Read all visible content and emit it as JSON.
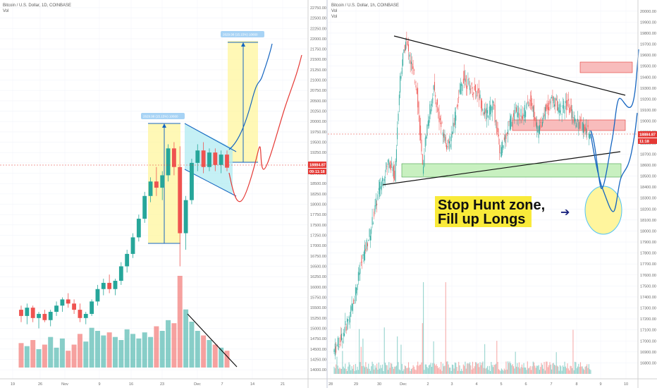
{
  "left_panel": {
    "header": "Bitcoin / U.S. Dollar, 1D, COINBASE",
    "vol_label": "Vol",
    "price_tag": "18884.87",
    "time_tag": "09:11:18",
    "projection_label_1": "2629.98 (15.15%) 10660",
    "projection_label_2": "2629.98 (15.15%) 10660"
  },
  "right_panel": {
    "header": "Bitcoin / U.S. Dollar, 1h, COINBASE",
    "vol_label": "Vol",
    "price_tag": "18884.87",
    "time_tag": "11:18",
    "callout_line1": "Stop Hunt zone,",
    "callout_line2": "Fill up Longs",
    "arrow_glyph": "➔"
  },
  "colors": {
    "up": "#26a69a",
    "down": "#ef5350",
    "yellow_box": "#fff59d",
    "cyan_box": "#b2ebf2",
    "red_zone": "#f8bcbc",
    "green_zone": "#c8f0c0",
    "projection_blue": "#1565c0",
    "projection_red": "#e53935"
  },
  "chart_data": [
    {
      "type": "candlestick",
      "title": "Bitcoin / U.S. Dollar, 1D, COINBASE",
      "x_ticks": [
        "19",
        "26",
        "Nov",
        "9",
        "16",
        "23",
        "Dec",
        "7",
        "14",
        "21"
      ],
      "y_ticks": [
        14000,
        14250,
        14500,
        14750,
        15000,
        15250,
        15500,
        15750,
        16000,
        16250,
        16500,
        16750,
        17000,
        17250,
        17500,
        17750,
        18000,
        18250,
        18500,
        18750,
        19000,
        19250,
        19500,
        19750,
        20000,
        20250,
        20500,
        20750,
        21000,
        21250,
        21500,
        21750,
        22000,
        22250,
        22500,
        22750
      ],
      "ylim": [
        13900,
        22800
      ],
      "candles": [
        [
          15450,
          15550,
          15150,
          15300
        ],
        [
          15300,
          15600,
          15100,
          15500
        ],
        [
          15500,
          15550,
          15150,
          15250
        ],
        [
          15250,
          15400,
          15000,
          15350
        ],
        [
          15350,
          15450,
          15150,
          15200
        ],
        [
          15200,
          15450,
          15050,
          15400
        ],
        [
          15400,
          15650,
          15300,
          15550
        ],
        [
          15550,
          15750,
          15400,
          15700
        ],
        [
          15700,
          15850,
          15500,
          15600
        ],
        [
          15600,
          15700,
          15350,
          15450
        ],
        [
          15450,
          15600,
          15150,
          15250
        ],
        [
          15250,
          15400,
          15100,
          15350
        ],
        [
          15350,
          15700,
          15300,
          15650
        ],
        [
          15650,
          16050,
          15550,
          15950
        ],
        [
          15950,
          16200,
          15800,
          16100
        ],
        [
          16100,
          16300,
          15850,
          15950
        ],
        [
          15950,
          16200,
          15800,
          16150
        ],
        [
          16150,
          16600,
          16050,
          16500
        ],
        [
          16500,
          16900,
          16350,
          16800
        ],
        [
          16800,
          17300,
          16700,
          17200
        ],
        [
          17200,
          17750,
          17100,
          17650
        ],
        [
          17650,
          18300,
          17550,
          18200
        ],
        [
          18200,
          18650,
          18050,
          18550
        ],
        [
          18550,
          18900,
          18200,
          18400
        ],
        [
          18400,
          18800,
          18100,
          18700
        ],
        [
          18700,
          19450,
          18550,
          19350
        ],
        [
          19350,
          19500,
          18700,
          18900
        ],
        [
          18900,
          19400,
          16500,
          17300
        ],
        [
          17300,
          18200,
          16900,
          18100
        ],
        [
          18100,
          19100,
          18000,
          19000
        ],
        [
          19000,
          19450,
          18800,
          19300
        ],
        [
          19300,
          19500,
          18750,
          18900
        ],
        [
          18900,
          19350,
          18800,
          19250
        ],
        [
          19250,
          19350,
          18800,
          18950
        ],
        [
          18950,
          19300,
          18750,
          19200
        ],
        [
          19200,
          19300,
          18800,
          18884
        ]
      ],
      "volume": [
        32,
        28,
        36,
        24,
        30,
        40,
        26,
        38,
        22,
        30,
        44,
        34,
        52,
        48,
        42,
        46,
        40,
        36,
        50,
        44,
        38,
        46,
        40,
        54,
        48,
        62,
        58,
        120,
        76,
        60,
        48,
        42,
        36,
        30,
        26,
        22
      ],
      "projection": {
        "measured_move": "2629.98 (15.15%)",
        "target_high": 21850,
        "target_low": 19000
      }
    },
    {
      "type": "candlestick",
      "title": "Bitcoin / U.S. Dollar, 1h, COINBASE",
      "x_ticks": [
        "28",
        "29",
        "30",
        "Dec",
        "2",
        "3",
        "4",
        "5",
        "6",
        "7",
        "8",
        "9",
        "10"
      ],
      "y_ticks": [
        16800,
        16900,
        17000,
        17100,
        17200,
        17300,
        17400,
        17500,
        17600,
        17700,
        17800,
        17900,
        18000,
        18100,
        18200,
        18300,
        18400,
        18500,
        18600,
        18700,
        18800,
        18900,
        19000,
        19100,
        19200,
        19300,
        19400,
        19500,
        19600,
        19700,
        19800,
        19900,
        20000
      ],
      "ylim": [
        16700,
        20050
      ],
      "zones": {
        "upper_resistance": [
          19450,
          19550
        ],
        "mid_resistance": [
          18950,
          19050
        ],
        "support": [
          18550,
          18680
        ],
        "stop_hunt_zone": [
          18000,
          18300
        ]
      },
      "annotation": "Stop Hunt zone, Fill up Longs"
    }
  ]
}
